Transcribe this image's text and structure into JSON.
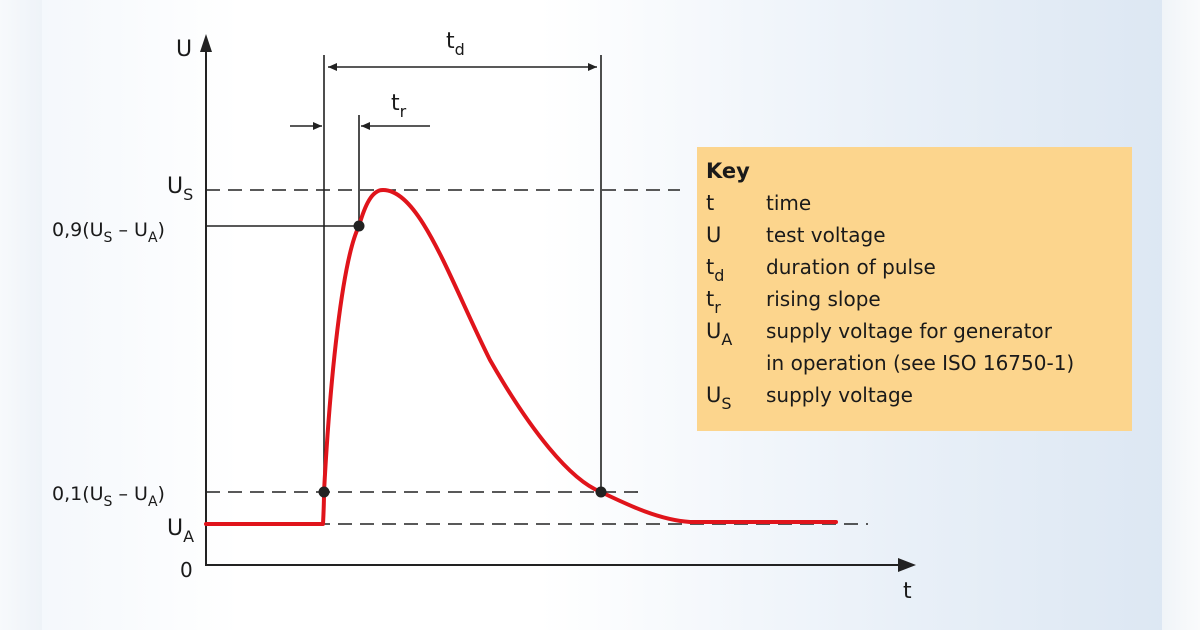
{
  "axes": {
    "y_label": "U",
    "x_label": "t",
    "origin_label": "0"
  },
  "levels": {
    "us": {
      "main": "U",
      "sub": "S"
    },
    "ninety": {
      "pre": "0,9(U",
      "s": "S",
      "mid": " – U",
      "a": "A",
      "post": ")"
    },
    "ten": {
      "pre": "0,1(U",
      "s": "S",
      "mid": " – U",
      "a": "A",
      "post": ")"
    },
    "ua": {
      "main": "U",
      "sub": "A"
    }
  },
  "dims": {
    "td": {
      "main": "t",
      "sub": "d"
    },
    "tr": {
      "main": "t",
      "sub": "r"
    }
  },
  "key": {
    "title": "Key",
    "items": [
      {
        "sym": "t",
        "sub": "",
        "desc": "time"
      },
      {
        "sym": "U",
        "sub": "",
        "desc": "test voltage"
      },
      {
        "sym": "t",
        "sub": "d",
        "desc": "duration of pulse"
      },
      {
        "sym": "t",
        "sub": "r",
        "desc": "rising slope"
      },
      {
        "sym": "U",
        "sub": "A",
        "desc": "supply voltage for generator"
      },
      {
        "sym": "",
        "sub": "",
        "desc": "in operation (see ISO 16750-1)"
      },
      {
        "sym": "U",
        "sub": "S",
        "desc": "supply voltage"
      }
    ]
  },
  "colors": {
    "pulse": "#e0141b",
    "line": "#222222",
    "key_bg": "#fcd58d"
  }
}
